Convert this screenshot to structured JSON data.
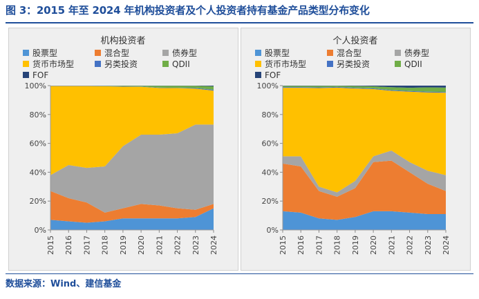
{
  "figure_title": "图 3：2015 年至 2024 年机构投资者及个人投资者持有基金产品类型分布变化",
  "source": "数据来源：Wind、建信基金",
  "colors": {
    "股票型": "#4e94d6",
    "混合型": "#ed7d31",
    "债券型": "#a5a5a5",
    "货币市场型": "#ffc000",
    "另类投资": "#4472c4",
    "QDII": "#70ad47",
    "FOF": "#264478"
  },
  "chart_data": [
    {
      "type": "area",
      "stacked": true,
      "title": "机构投资者",
      "x": [
        "2015",
        "2016",
        "2017",
        "2018",
        "2019",
        "2020",
        "2021",
        "2022",
        "2023",
        "2024"
      ],
      "ylim": [
        0,
        100
      ],
      "yticks": [
        "0%",
        "20%",
        "40%",
        "60%",
        "80%",
        "100%"
      ],
      "legend_position": "top",
      "series": [
        {
          "name": "股票型",
          "values": [
            7,
            6,
            5,
            6,
            8,
            8,
            8,
            8,
            9,
            15
          ]
        },
        {
          "name": "混合型",
          "values": [
            20,
            16,
            14,
            6,
            7,
            10,
            9,
            7,
            5,
            3
          ]
        },
        {
          "name": "债券型",
          "values": [
            11,
            23,
            24,
            32,
            43,
            48,
            49,
            52,
            59,
            55
          ]
        },
        {
          "name": "货币市场型",
          "values": [
            61.7,
            54.7,
            56.7,
            55.6,
            41.3,
            33.2,
            32.4,
            31.3,
            24.9,
            23.5
          ]
        },
        {
          "name": "另类投资",
          "values": [
            0.1,
            0.1,
            0.1,
            0.1,
            0.2,
            0.2,
            0.2,
            0.2,
            0.4,
            0.6
          ]
        },
        {
          "name": "QDII",
          "values": [
            0.1,
            0.1,
            0.1,
            0.2,
            0.4,
            0.5,
            1.3,
            1.4,
            1.6,
            2.4
          ]
        },
        {
          "name": "FOF",
          "values": [
            0.1,
            0.1,
            0.1,
            0.1,
            0.1,
            0.1,
            0.1,
            0.1,
            0.1,
            0.5
          ]
        }
      ]
    },
    {
      "type": "area",
      "stacked": true,
      "title": "个人投资者",
      "x": [
        "2015",
        "2016",
        "2017",
        "2018",
        "2019",
        "2020",
        "2021",
        "2022",
        "2023",
        "2024"
      ],
      "ylim": [
        0,
        100
      ],
      "yticks": [
        "0%",
        "20%",
        "40%",
        "60%",
        "80%",
        "100%"
      ],
      "legend_position": "top",
      "series": [
        {
          "name": "股票型",
          "values": [
            13,
            12,
            8,
            7,
            9,
            13,
            13,
            12,
            11,
            11
          ]
        },
        {
          "name": "混合型",
          "values": [
            33,
            32,
            19,
            16,
            20,
            34,
            35,
            28,
            21,
            16
          ]
        },
        {
          "name": "债券型",
          "values": [
            5,
            7,
            3,
            3,
            5,
            4,
            7,
            7,
            9,
            11
          ]
        },
        {
          "name": "货币市场型",
          "values": [
            47.5,
            47.5,
            68.3,
            72.6,
            64,
            46.6,
            41.4,
            48.8,
            54.3,
            57.1
          ]
        },
        {
          "name": "另类投资",
          "values": [
            0.5,
            0.5,
            0.5,
            0.5,
            0.5,
            0.5,
            0.5,
            0.5,
            0.5,
            0.5
          ]
        },
        {
          "name": "QDII",
          "values": [
            0.8,
            0.8,
            1,
            0.8,
            1.2,
            1.4,
            2,
            2.2,
            3,
            3
          ]
        },
        {
          "name": "FOF",
          "values": [
            0.2,
            0.2,
            0.2,
            0.1,
            0.3,
            0.5,
            1.1,
            1.5,
            1.2,
            1.4
          ]
        }
      ]
    }
  ]
}
